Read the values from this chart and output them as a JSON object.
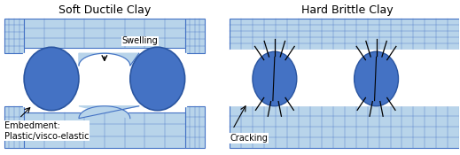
{
  "title_left": "Soft Ductile Clay",
  "title_right": "Hard Brittle Clay",
  "bg_color": "#ffffff",
  "shale_fill": "#b8d4ea",
  "shale_edge": "#4472c4",
  "grain_fill": "#4472c4",
  "grain_edge": "#2a55a0",
  "label_swelling": "Swelling",
  "label_embedment": "Embedment:\nPlastic/visco-elastic",
  "label_cracking": "Cracking",
  "title_fontsize": 9,
  "label_fontsize": 7,
  "grid_nx": 18,
  "grid_ny": 6
}
